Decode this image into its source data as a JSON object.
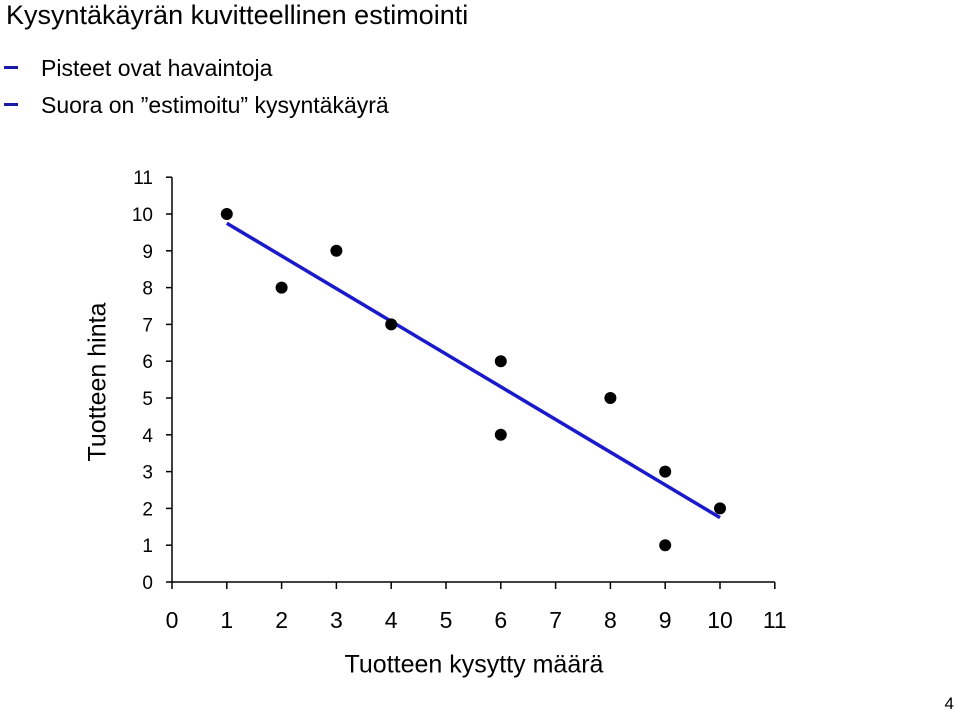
{
  "header": {
    "title": "Kysyntäkäyrän kuvitteellinen estimointi",
    "bullets": [
      "Pisteet ovat havaintoja",
      "Suora on ”estimoitu” kysyntäkäyrä"
    ]
  },
  "page_number": "4",
  "colors": {
    "line": "#1a1acc",
    "points": "#000000",
    "bullet": "#1a1aa8"
  },
  "chart_data": {
    "type": "scatter",
    "xlabel": "Tuotteen kysytty määrä",
    "ylabel": "Tuotteen hinta",
    "xlim": [
      0,
      11
    ],
    "ylim": [
      0,
      11
    ],
    "xticks": [
      0,
      1,
      2,
      3,
      4,
      5,
      6,
      7,
      8,
      9,
      10,
      11
    ],
    "yticks": [
      0,
      1,
      2,
      3,
      4,
      5,
      6,
      7,
      8,
      9,
      10,
      11
    ],
    "grid": false,
    "series": [
      {
        "kind": "points",
        "points": [
          [
            1,
            10
          ],
          [
            2,
            8
          ],
          [
            3,
            9
          ],
          [
            4,
            7
          ],
          [
            6,
            6
          ],
          [
            6,
            4
          ],
          [
            8,
            5
          ],
          [
            9,
            3
          ],
          [
            9,
            1
          ],
          [
            10,
            2
          ]
        ]
      },
      {
        "kind": "line",
        "points": [
          [
            1,
            9.75
          ],
          [
            10,
            1.75
          ]
        ]
      }
    ]
  }
}
